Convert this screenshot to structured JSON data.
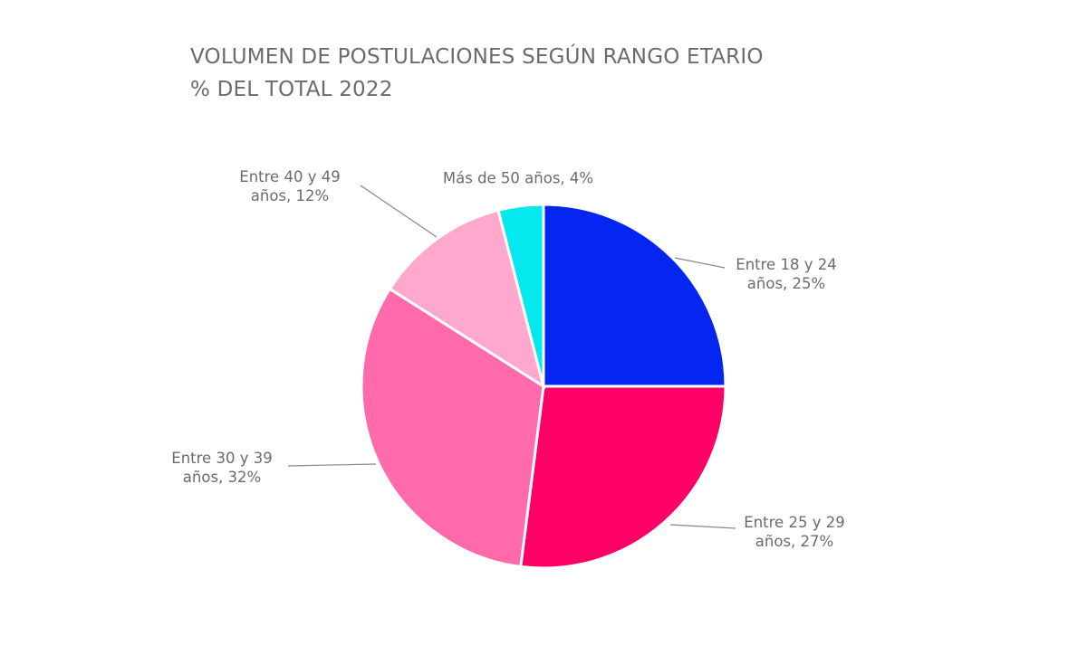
{
  "chart_data": {
    "type": "pie",
    "title": "VOLUMEN DE POSTULACIONES SEGÚN RANGO ETARIO",
    "subtitle": "% DEL TOTAL 2022",
    "values": [
      25,
      27,
      32,
      12,
      4
    ],
    "value_labels": [
      "Entre 18 y 24 años, 25%",
      "Entre 25 y 29 años, 27%",
      "Entre 30 y 39 años, 32%",
      "Entre 40 y 49 años, 12%",
      "Más de 50 años, 4%"
    ],
    "colors": [
      "#0426f0",
      "#ff0066",
      "#ff6aab",
      "#ffa8cd",
      "#04e8ee"
    ]
  }
}
